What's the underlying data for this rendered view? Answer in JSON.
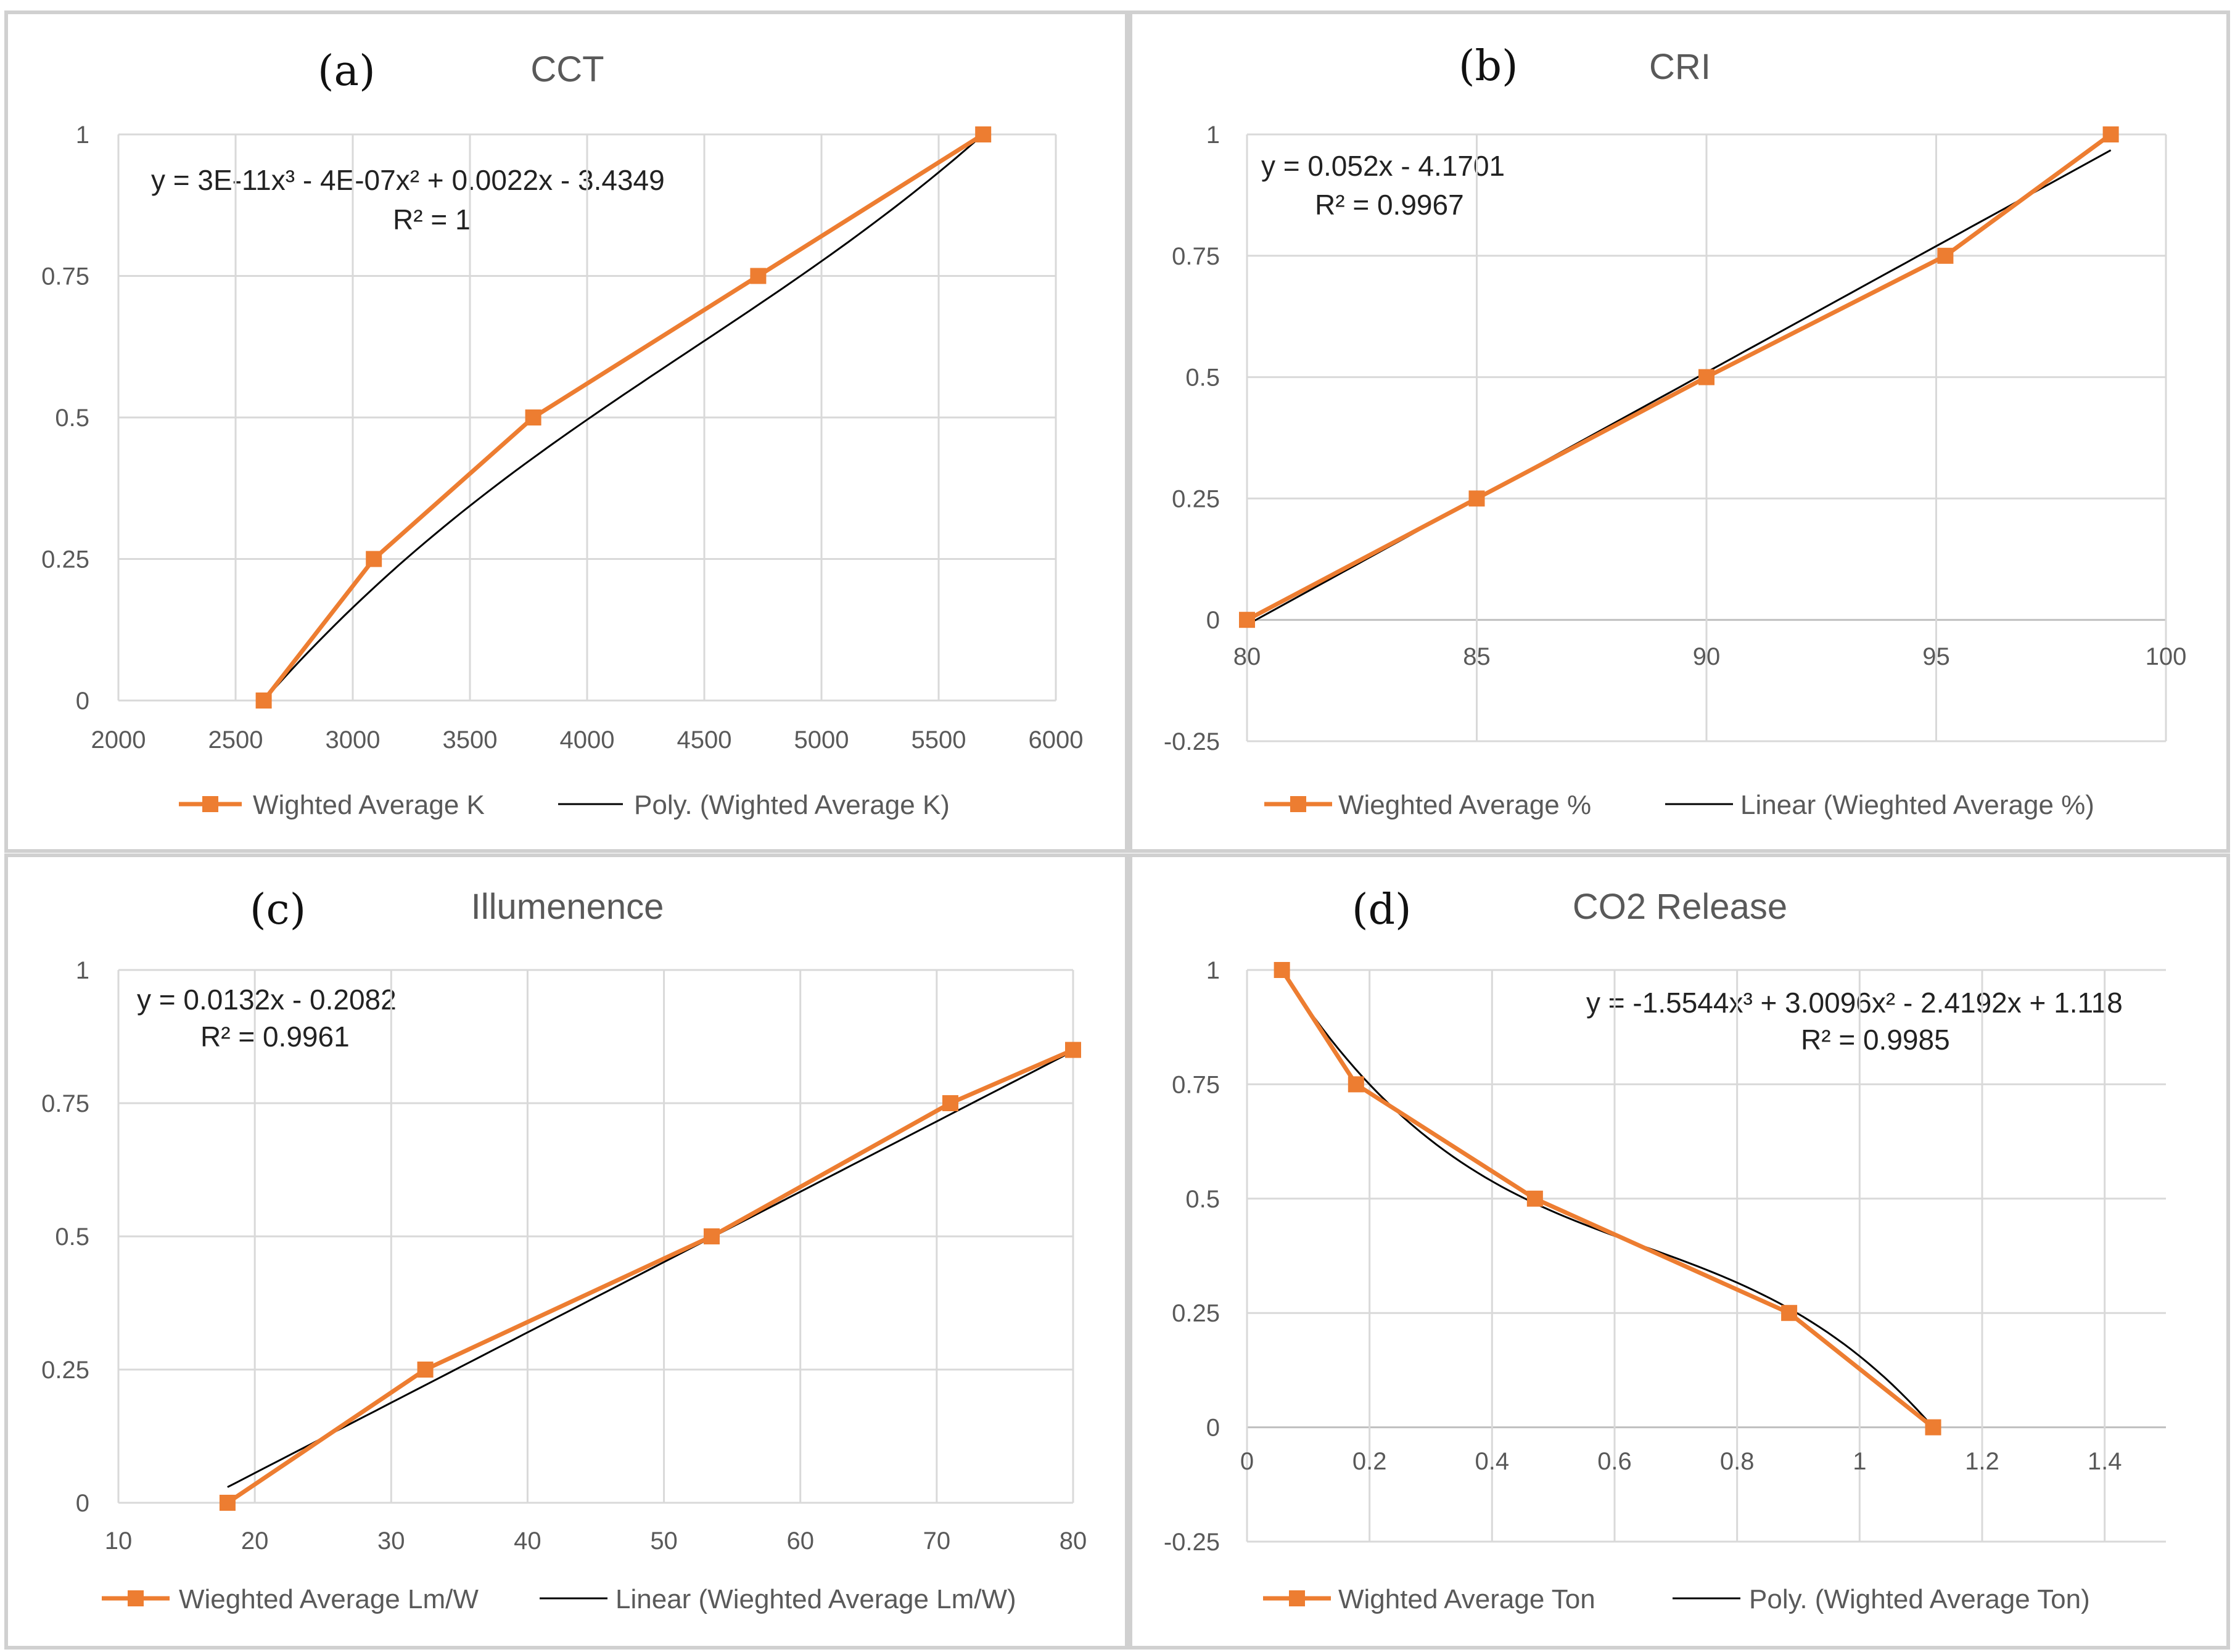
{
  "colors": {
    "data": "#ED7D31",
    "trend": "#000000",
    "grid": "#d9d9d9",
    "text": "#595959"
  },
  "chart_data": [
    {
      "type": "line",
      "panel_label": "(a)",
      "title": "CCT",
      "x": [
        2620,
        3090,
        3770,
        4730,
        5690
      ],
      "values": [
        0,
        0.25,
        0.5,
        0.75,
        1
      ],
      "xlim": [
        2000,
        6000
      ],
      "ylim": [
        0,
        1
      ],
      "x_ticks": [
        "2000",
        "2500",
        "3000",
        "3500",
        "4000",
        "4500",
        "5000",
        "5500",
        "6000"
      ],
      "y_ticks": [
        "0",
        "0.25",
        "0.5",
        "0.75",
        "1"
      ],
      "trendline": {
        "type": "poly3",
        "coef": [
          -3.4349,
          0.0022,
          -4e-07,
          3e-11
        ],
        "range": [
          2620,
          5690
        ],
        "normalize_to": [
          [
            2620,
            0
          ],
          [
            5690,
            1
          ]
        ]
      },
      "equation": "y = 3E-11x³ - 4E-07x² + 0.0022x - 3.4349",
      "r_squared": "R² = 1",
      "legend": [
        "Wighted Average K",
        "Poly. (Wighted Average K)"
      ]
    },
    {
      "type": "line",
      "panel_label": "(b)",
      "title": "CRI",
      "x": [
        80,
        85,
        90,
        95.2,
        98.8
      ],
      "values": [
        0,
        0.25,
        0.5,
        0.75,
        1
      ],
      "xlim": [
        80,
        100
      ],
      "ylim": [
        -0.25,
        1
      ],
      "x_ticks": [
        "80",
        "85",
        "90",
        "95",
        "100"
      ],
      "y_ticks": [
        "-0.25",
        "0",
        "0.25",
        "0.5",
        "0.75",
        "1"
      ],
      "trendline": {
        "type": "linear",
        "coef": [
          -4.1701,
          0.052
        ],
        "range": [
          80,
          98.8
        ]
      },
      "equation": "y = 0.052x - 4.1701",
      "r_squared": "R² = 0.9967",
      "legend": [
        "Wieghted Average %",
        "Linear (Wieghted Average %)"
      ]
    },
    {
      "type": "line",
      "panel_label": "(c)",
      "title": "Illumenence",
      "x": [
        18,
        32.5,
        53.5,
        71,
        80
      ],
      "values": [
        0,
        0.25,
        0.5,
        0.75,
        0.85
      ],
      "xlim": [
        10,
        80
      ],
      "ylim": [
        0,
        1
      ],
      "x_ticks": [
        "10",
        "20",
        "30",
        "40",
        "50",
        "60",
        "70",
        "80"
      ],
      "y_ticks": [
        "0",
        "0.25",
        "0.5",
        "0.75",
        "1"
      ],
      "trendline": {
        "type": "linear",
        "coef": [
          -0.2082,
          0.0132
        ],
        "range": [
          18,
          80
        ]
      },
      "equation": "y = 0.0132x - 0.2082",
      "r_squared": "R² = 0.9961",
      "legend": [
        "Wieghted Average Lm/W",
        "Linear (Wieghted Average Lm/W)"
      ]
    },
    {
      "type": "line",
      "panel_label": "(d)",
      "title": "CO2 Release",
      "x": [
        0.057,
        0.178,
        0.47,
        0.885,
        1.12
      ],
      "values": [
        1,
        0.75,
        0.5,
        0.25,
        0
      ],
      "xlim": [
        0,
        1.5
      ],
      "ylim": [
        -0.25,
        1
      ],
      "x_ticks": [
        "0",
        "0.2",
        "0.4",
        "0.6",
        "0.8",
        "1",
        "1.2",
        "1.4"
      ],
      "y_ticks": [
        "-0.25",
        "0",
        "0.25",
        "0.5",
        "0.75",
        "1"
      ],
      "trendline": {
        "type": "poly3",
        "coef": [
          1.118,
          -2.4192,
          3.0096,
          -1.5544
        ],
        "range": [
          0.057,
          1.12
        ],
        "normalize_to": [
          [
            0.057,
            1
          ],
          [
            1.12,
            0
          ]
        ]
      },
      "equation": "y = -1.5544x³ + 3.0096x² - 2.4192x + 1.118",
      "r_squared": "R² = 0.9985",
      "legend": [
        "Wighted Average Ton",
        "Poly. (Wighted Average Ton)"
      ]
    }
  ]
}
